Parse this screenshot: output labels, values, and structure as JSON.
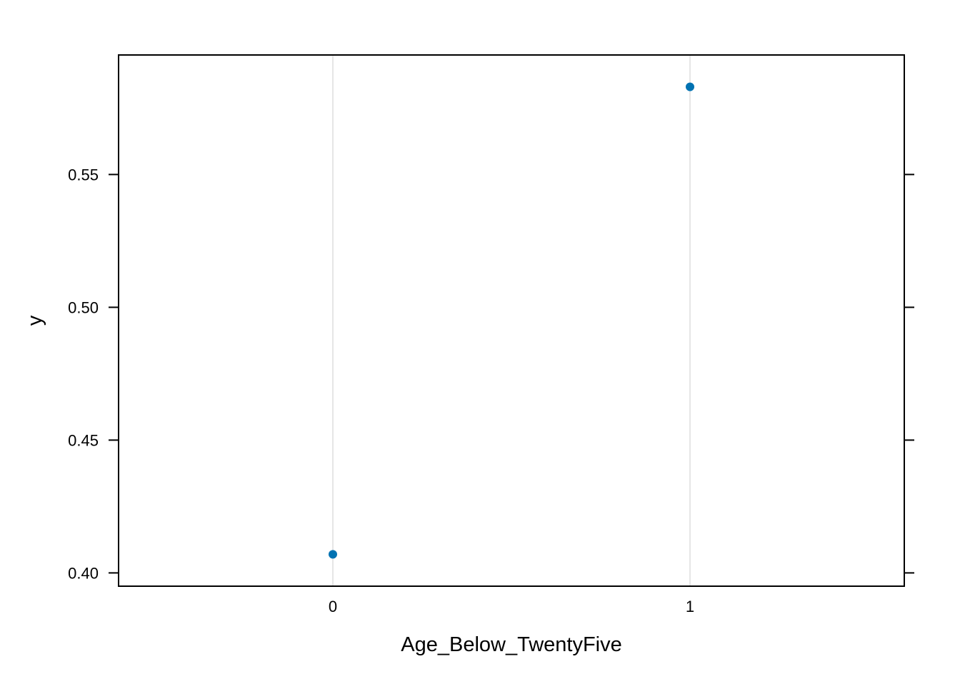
{
  "chart_data": {
    "type": "scatter",
    "title": "",
    "xlabel": "Age_Below_TwentyFive",
    "ylabel": "y",
    "categories": [
      "0",
      "1"
    ],
    "x": [
      0,
      1
    ],
    "series": [
      {
        "values": [
          0.407,
          0.583
        ],
        "color": "#0072B2"
      }
    ],
    "xlim": [
      -0.6,
      1.6
    ],
    "ylim": [
      0.395,
      0.595
    ],
    "yticks": [
      0.4,
      0.45,
      0.5,
      0.55
    ],
    "ytick_labels": [
      "0.40",
      "0.45",
      "0.50",
      "0.55"
    ],
    "grid": "vertical lines at x categories",
    "gridline_color": "#e6e6e6",
    "legend": "none"
  }
}
